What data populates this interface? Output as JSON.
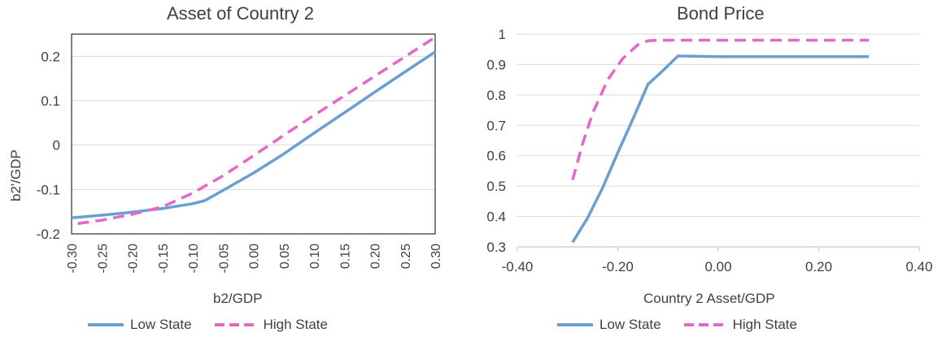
{
  "chart_data": [
    {
      "type": "line",
      "title": "Asset of Country 2",
      "xlabel": "b2/GDP",
      "ylabel": "b2'/GDP",
      "xlim": [
        -0.3,
        0.3
      ],
      "ylim": [
        -0.2,
        0.25
      ],
      "xticks": [
        "-0.30",
        "-0.25",
        "-0.20",
        "-0.15",
        "-0.10",
        "-0.05",
        "0.00",
        "0.05",
        "0.10",
        "0.15",
        "0.20",
        "0.25",
        "0.30"
      ],
      "yticks": [
        {
          "value": -0.2,
          "label": "-0.2"
        },
        {
          "value": -0.1,
          "label": "-0.1"
        },
        {
          "value": 0,
          "label": "0"
        },
        {
          "value": 0.1,
          "label": "0.1"
        },
        {
          "value": 0.2,
          "label": "0.2"
        }
      ],
      "grid": "horizontal",
      "legend": "bottom",
      "series": [
        {
          "name": "Low State",
          "style": "solid",
          "color": "#6a9fd1",
          "x": [
            -0.3,
            -0.25,
            -0.2,
            -0.15,
            -0.1,
            -0.08,
            -0.05,
            0.0,
            0.05,
            0.1,
            0.15,
            0.2,
            0.25,
            0.3
          ],
          "y": [
            -0.164,
            -0.158,
            -0.151,
            -0.143,
            -0.132,
            -0.125,
            -0.102,
            -0.063,
            -0.02,
            0.027,
            0.073,
            0.119,
            0.165,
            0.21
          ]
        },
        {
          "name": "High State",
          "style": "dashed",
          "color": "#e667c8",
          "x": [
            -0.29,
            -0.25,
            -0.2,
            -0.15,
            -0.1,
            -0.05,
            0.0,
            0.05,
            0.1,
            0.15,
            0.2,
            0.25,
            0.3
          ],
          "y": [
            -0.177,
            -0.169,
            -0.156,
            -0.139,
            -0.108,
            -0.069,
            -0.024,
            0.022,
            0.067,
            0.111,
            0.155,
            0.199,
            0.243
          ]
        }
      ]
    },
    {
      "type": "line",
      "title": "Bond Price",
      "xlabel": "Country 2 Asset/GDP",
      "ylabel": "",
      "xlim": [
        -0.4,
        0.4
      ],
      "ylim": [
        0.3,
        1.0
      ],
      "xticks": [
        {
          "value": -0.4,
          "label": "-0.40"
        },
        {
          "value": -0.2,
          "label": "-0.20"
        },
        {
          "value": 0.0,
          "label": "0.00"
        },
        {
          "value": 0.2,
          "label": "0.20"
        },
        {
          "value": 0.4,
          "label": "0.40"
        }
      ],
      "yticks": [
        {
          "value": 0.3,
          "label": "0.3"
        },
        {
          "value": 0.4,
          "label": "0.4"
        },
        {
          "value": 0.5,
          "label": "0.5"
        },
        {
          "value": 0.6,
          "label": "0.6"
        },
        {
          "value": 0.7,
          "label": "0.7"
        },
        {
          "value": 0.8,
          "label": "0.8"
        },
        {
          "value": 0.9,
          "label": "0.9"
        },
        {
          "value": 1.0,
          "label": "1"
        }
      ],
      "grid": "horizontal",
      "legend": "bottom",
      "series": [
        {
          "name": "Low State",
          "style": "solid",
          "color": "#6a9fd1",
          "x": [
            -0.29,
            -0.26,
            -0.23,
            -0.2,
            -0.17,
            -0.14,
            -0.11,
            -0.08,
            -0.05,
            0.0,
            0.1,
            0.2,
            0.3
          ],
          "y": [
            0.315,
            0.395,
            0.495,
            0.61,
            0.72,
            0.835,
            0.88,
            0.928,
            0.927,
            0.926,
            0.926,
            0.926,
            0.926
          ]
        },
        {
          "name": "High State",
          "style": "dashed",
          "color": "#e667c8",
          "x": [
            -0.29,
            -0.27,
            -0.25,
            -0.22,
            -0.19,
            -0.16,
            -0.14,
            -0.12,
            -0.1,
            0.0,
            0.1,
            0.2,
            0.3
          ],
          "y": [
            0.52,
            0.64,
            0.74,
            0.85,
            0.92,
            0.965,
            0.978,
            0.98,
            0.98,
            0.98,
            0.98,
            0.98,
            0.98
          ]
        }
      ]
    }
  ]
}
